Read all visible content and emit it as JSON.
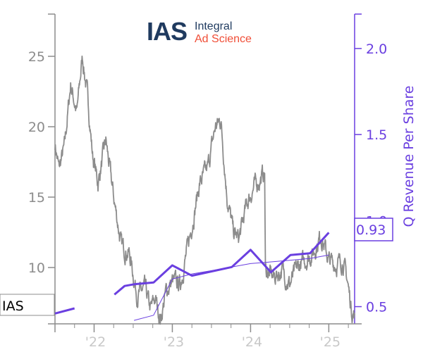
{
  "logo": {
    "mark": "IAS",
    "line1": "Integral",
    "line2": "Ad Science",
    "mark_color": "#1f3a5f",
    "text_color": "#f04e37"
  },
  "chart_data": {
    "type": "line",
    "ticker": "IAS",
    "ylabel_right": "Q Revenue Per Share",
    "last_value_label": "0.93",
    "left_axis": {
      "ticks": [
        "10",
        "15",
        "20",
        "25"
      ],
      "range": [
        6,
        28
      ]
    },
    "right_axis": {
      "ticks": [
        "0.5",
        "1.0",
        "1.5",
        "2.0"
      ],
      "range": [
        0.4,
        2.2
      ]
    },
    "x_ticks": [
      "'22",
      "'23",
      "'24",
      "'25"
    ],
    "x_range": [
      2021.5,
      2025.33
    ],
    "price_color": "#8c8c8c",
    "revenue_color": "#6a3fe0",
    "series": [
      {
        "name": "IAS",
        "axis": "left",
        "style": "price",
        "anchors": [
          [
            2021.5,
            18.8
          ],
          [
            2021.55,
            17.0
          ],
          [
            2021.62,
            18.5
          ],
          [
            2021.7,
            23.0
          ],
          [
            2021.78,
            21.0
          ],
          [
            2021.85,
            25.0
          ],
          [
            2021.92,
            22.0
          ],
          [
            2021.98,
            18.0
          ],
          [
            2022.05,
            16.0
          ],
          [
            2022.15,
            19.0
          ],
          [
            2022.25,
            15.0
          ],
          [
            2022.35,
            11.5
          ],
          [
            2022.45,
            11.0
          ],
          [
            2022.55,
            8.0
          ],
          [
            2022.65,
            8.5
          ],
          [
            2022.72,
            7.0
          ],
          [
            2022.78,
            7.8
          ],
          [
            2022.85,
            6.3
          ],
          [
            2022.92,
            8.3
          ],
          [
            2023.0,
            9.0
          ],
          [
            2023.1,
            8.8
          ],
          [
            2023.2,
            11.5
          ],
          [
            2023.35,
            16.0
          ],
          [
            2023.45,
            17.0
          ],
          [
            2023.55,
            20.0
          ],
          [
            2023.62,
            20.5
          ],
          [
            2023.7,
            15.0
          ],
          [
            2023.78,
            12.5
          ],
          [
            2023.85,
            12.0
          ],
          [
            2023.95,
            14.5
          ],
          [
            2024.05,
            15.8
          ],
          [
            2024.12,
            16.2
          ],
          [
            2024.18,
            16.8
          ],
          [
            2024.19,
            9.8
          ],
          [
            2024.3,
            9.3
          ],
          [
            2024.4,
            9.8
          ],
          [
            2024.5,
            8.8
          ],
          [
            2024.6,
            10.0
          ],
          [
            2024.7,
            10.5
          ],
          [
            2024.8,
            11.0
          ],
          [
            2024.9,
            12.3
          ],
          [
            2025.0,
            10.5
          ],
          [
            2025.1,
            10.2
          ],
          [
            2025.18,
            10.5
          ],
          [
            2025.24,
            9.0
          ],
          [
            2025.29,
            7.0
          ],
          [
            2025.33,
            6.6
          ]
        ]
      },
      {
        "name": "Q Revenue Per Share",
        "axis": "right",
        "style": "revenue",
        "points": [
          [
            2021.5,
            0.46
          ],
          [
            2021.75,
            0.49
          ],
          [
            2022.26,
            0.57
          ],
          [
            2022.39,
            0.62
          ],
          [
            2022.51,
            0.63
          ],
          [
            2022.76,
            0.64
          ],
          [
            2023.0,
            0.74
          ],
          [
            2023.25,
            0.68
          ],
          [
            2023.76,
            0.73
          ],
          [
            2024.0,
            0.83
          ],
          [
            2024.26,
            0.7
          ],
          [
            2024.51,
            0.8
          ],
          [
            2024.76,
            0.81
          ],
          [
            2025.0,
            0.93
          ]
        ]
      },
      {
        "name": "Q Revenue Per Share (trailing average)",
        "axis": "right",
        "style": "thin",
        "points": [
          [
            2022.51,
            0.42
          ],
          [
            2022.76,
            0.45
          ],
          [
            2023.0,
            0.66
          ],
          [
            2023.25,
            0.69
          ],
          [
            2023.51,
            0.71
          ],
          [
            2023.76,
            0.73
          ],
          [
            2024.0,
            0.75
          ],
          [
            2024.26,
            0.76
          ],
          [
            2024.51,
            0.77
          ],
          [
            2024.76,
            0.78
          ],
          [
            2025.0,
            0.8
          ]
        ]
      }
    ]
  }
}
